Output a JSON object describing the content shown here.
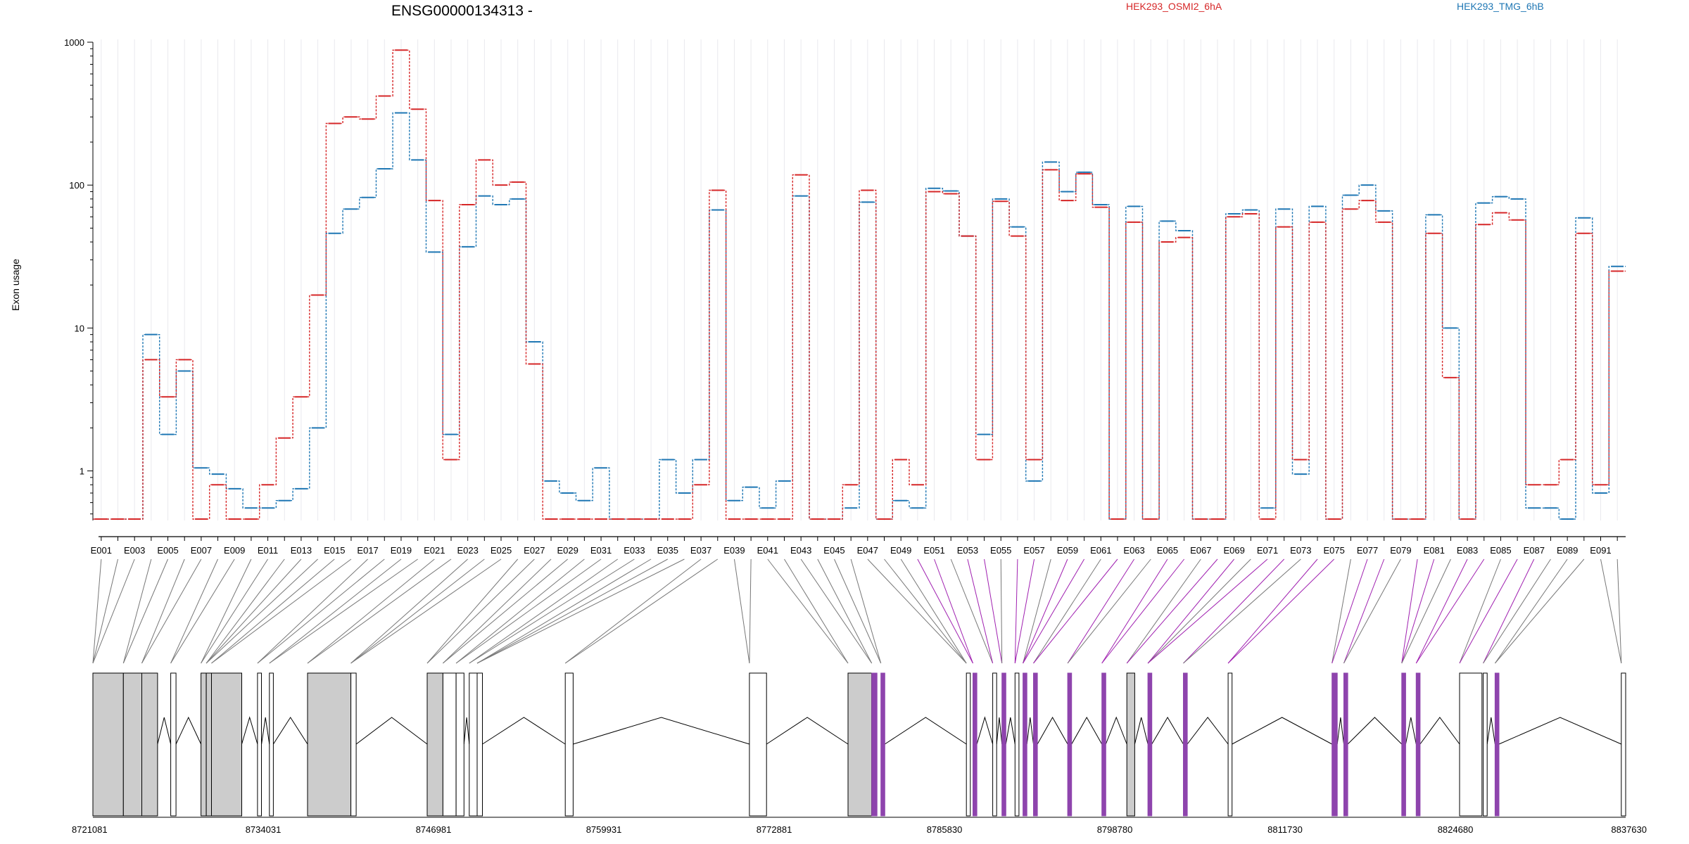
{
  "chart_data": {
    "type": "line",
    "title": "ENSG00000134313 -",
    "ylabel": "Exon usage",
    "yscale": "log",
    "ylim": [
      0.45,
      1000
    ],
    "yticks": [
      "1",
      "10",
      "100",
      "1000"
    ],
    "grid": "vertical",
    "legend_placement": "top",
    "categories": [
      "E001",
      "E002",
      "E003",
      "E004",
      "E005",
      "E006",
      "E007",
      "E008",
      "E009",
      "E010",
      "E011",
      "E012",
      "E013",
      "E014",
      "E015",
      "E016",
      "E017",
      "E018",
      "E019",
      "E020",
      "E021",
      "E022",
      "E023",
      "E024",
      "E025",
      "E026",
      "E027",
      "E028",
      "E029",
      "E030",
      "E031",
      "E032",
      "E033",
      "E034",
      "E035",
      "E036",
      "E037",
      "E038",
      "E039",
      "E040",
      "E041",
      "E042",
      "E043",
      "E044",
      "E045",
      "E046",
      "E047",
      "E048",
      "E049",
      "E050",
      "E051",
      "E052",
      "E053",
      "E054",
      "E055",
      "E056",
      "E057",
      "E058",
      "E059",
      "E060",
      "E061",
      "E062",
      "E063",
      "E064",
      "E065",
      "E066",
      "E067",
      "E068",
      "E069",
      "E070",
      "E071",
      "E072",
      "E073",
      "E074",
      "E075",
      "E076",
      "E077",
      "E078",
      "E079",
      "E080",
      "E081",
      "E082",
      "E083",
      "E084",
      "E085",
      "E086",
      "E087",
      "E088",
      "E089",
      "E090",
      "E091",
      "E092"
    ],
    "x_tick_labels": [
      "E001",
      "E003",
      "E005",
      "E007",
      "E009",
      "E011",
      "E013",
      "E015",
      "E017",
      "E019",
      "E021",
      "E023",
      "E025",
      "E027",
      "E029",
      "E031",
      "E033",
      "E035",
      "E037",
      "E039",
      "E041",
      "E043",
      "E045",
      "E047",
      "E049",
      "E051",
      "E053",
      "E055",
      "E057",
      "E059",
      "E061",
      "E063",
      "E065",
      "E067",
      "E069",
      "E071",
      "E073",
      "E075",
      "E077",
      "E079",
      "E081",
      "E083",
      "E085",
      "E087",
      "E089",
      "E091"
    ],
    "series": [
      {
        "name": "HEK293_OSMI2_6hA",
        "color": "#d62728",
        "values": [
          0.46,
          0.46,
          0.46,
          6,
          3.3,
          6,
          0.46,
          0.8,
          0.46,
          0.46,
          0.8,
          1.7,
          3.3,
          17,
          270,
          300,
          290,
          420,
          880,
          340,
          78,
          1.2,
          73,
          150,
          100,
          105,
          5.6,
          0.46,
          0.46,
          0.46,
          0.46,
          0.46,
          0.46,
          0.46,
          0.46,
          0.46,
          0.8,
          92,
          0.46,
          0.46,
          0.46,
          0.46,
          118,
          0.46,
          0.46,
          0.8,
          92,
          0.46,
          1.2,
          0.8,
          90,
          87,
          44,
          1.2,
          77,
          44,
          1.2,
          128,
          78,
          120,
          70,
          0.46,
          55,
          0.46,
          40,
          43,
          0.46,
          0.46,
          60,
          63,
          0.46,
          51,
          1.2,
          55,
          0.46,
          68,
          78,
          55,
          0.46,
          0.46,
          46,
          4.5,
          0.46,
          53,
          64,
          57,
          0.8,
          0.8,
          1.2,
          46,
          0.8,
          25
        ]
      },
      {
        "name": "HEK293_TMG_6hB",
        "color": "#1f77b4",
        "values": [
          0.46,
          0.46,
          0.46,
          9,
          1.8,
          5,
          1.05,
          0.95,
          0.75,
          0.55,
          0.55,
          0.62,
          0.75,
          2,
          46,
          68,
          82,
          130,
          320,
          150,
          34,
          1.8,
          37,
          84,
          73,
          80,
          8,
          0.85,
          0.7,
          0.62,
          1.05,
          0.46,
          0.46,
          0.46,
          1.2,
          0.7,
          1.2,
          67,
          0.62,
          0.77,
          0.55,
          0.85,
          84,
          0.46,
          0.46,
          0.55,
          76,
          0.46,
          0.62,
          0.55,
          95,
          91,
          44,
          1.8,
          80,
          51,
          0.85,
          145,
          90,
          123,
          73,
          0.46,
          71,
          0.46,
          56,
          48,
          0.46,
          0.46,
          63,
          67,
          0.55,
          68,
          0.95,
          71,
          0.46,
          85,
          100,
          66,
          0.46,
          0.46,
          62,
          10,
          0.46,
          75,
          83,
          80,
          0.55,
          0.55,
          0.46,
          59,
          0.7,
          27
        ]
      }
    ],
    "x_genomic_ticks": [
      "8721081",
      "8734031",
      "8746981",
      "8759931",
      "8772881",
      "8785830",
      "8798780",
      "8811730",
      "8824680",
      "8837630"
    ],
    "x_genomic_range": [
      8721081,
      8837630
    ]
  }
}
